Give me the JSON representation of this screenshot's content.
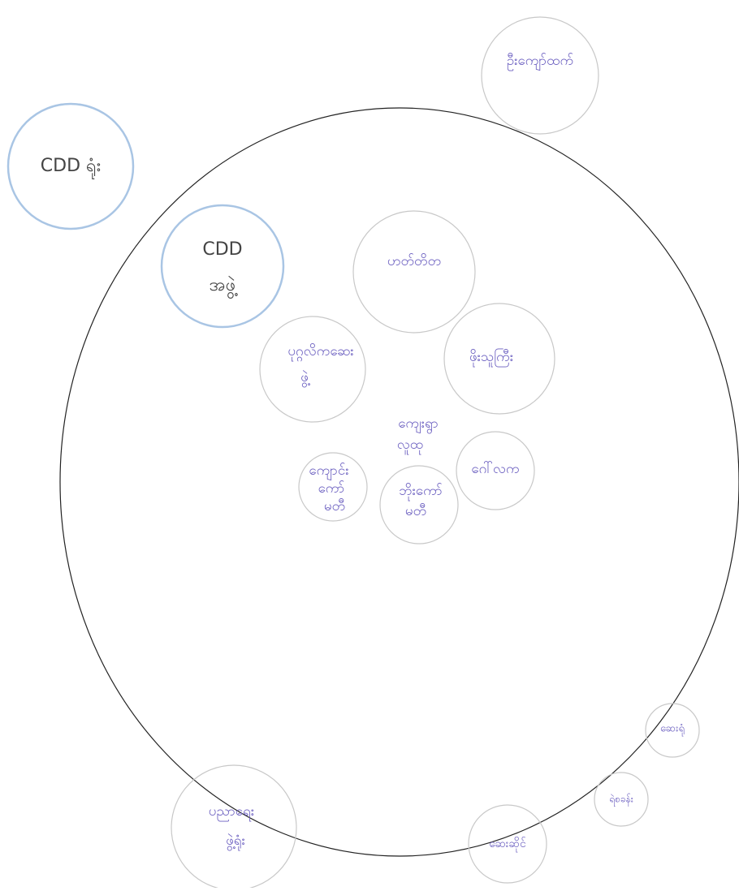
{
  "nodes": [
    {
      "lines": [
        "CDD ရုံး"
      ]
    },
    {
      "lines": [
        "CDD",
        "အဖွဲ့"
      ]
    },
    {
      "lines": [
        "ဦးကျော်ထက်"
      ]
    },
    {
      "lines": [
        "ဟတ်တိတ"
      ]
    },
    {
      "lines": [
        "ပုဂ္ဂလိကဆေး",
        "ဖွဲ့"
      ]
    },
    {
      "lines": [
        "ဖိုးသူကြီး"
      ]
    },
    {
      "lines": [
        "ကျေးရွာ",
        "လူထု"
      ]
    },
    {
      "lines": [
        "ဂေါ်လက"
      ]
    },
    {
      "lines": [
        "ကျောင်း",
        "ကော်",
        "မတီ"
      ]
    },
    {
      "lines": [
        "ဘိုးကော်",
        "မတီ"
      ]
    },
    {
      "lines": [
        "ပညာရေး",
        "ဖွဲ့ရုံး"
      ]
    },
    {
      "lines": [
        "ဆေးဆိုင်"
      ]
    },
    {
      "lines": [
        "ရဲစခန်း"
      ]
    },
    {
      "lines": [
        "ဆေးရုံ"
      ]
    }
  ]
}
